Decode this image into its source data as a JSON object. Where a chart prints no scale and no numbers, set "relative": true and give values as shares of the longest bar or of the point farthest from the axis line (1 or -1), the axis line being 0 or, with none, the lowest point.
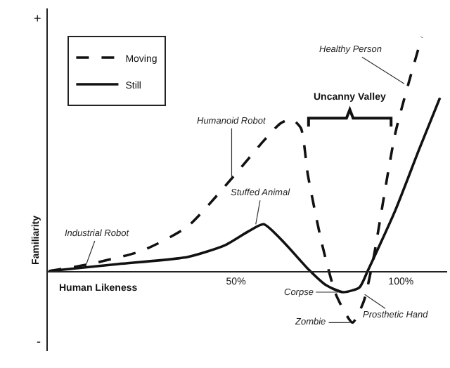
{
  "chart_data": {
    "type": "line",
    "relative": true,
    "xlabel": "Human Likeness",
    "ylabel": "Familiarity",
    "xlim": [
      -7,
      114
    ],
    "xticks": [
      {
        "value": 50,
        "label": "50%"
      },
      {
        "value": 100,
        "label": "100%"
      }
    ],
    "legend": "top left",
    "grid": false,
    "series": [
      {
        "name": "Moving",
        "color": "#111111",
        "line_style": "dashed",
        "x": [
          -6.7,
          4.6,
          21.4,
          35.3,
          49.6,
          58,
          63.4,
          66.8,
          69.7,
          71.8,
          76,
          80.3,
          85.3,
          88.7,
          91.6,
          98.3,
          106.3
        ],
        "values": [
          0,
          0.027,
          0.086,
          0.19,
          0.41,
          0.55,
          0.63,
          0.65,
          0.61,
          0.41,
          0.12,
          -0.1,
          -0.22,
          -0.13,
          0.05,
          0.59,
          1.0
        ]
      },
      {
        "name": "Still",
        "color": "#111111",
        "line_style": "solid",
        "x": [
          -6.7,
          14.3,
          35.3,
          46.6,
          53.8,
          58.4,
          64.7,
          71.8,
          77.3,
          82.4,
          87.4,
          89.9,
          98.3,
          105.5,
          111.8
        ],
        "values": [
          0,
          0.03,
          0.06,
          0.11,
          0.17,
          0.2,
          0.12,
          0.01,
          -0.06,
          -0.09,
          -0.07,
          0,
          0.26,
          0.52,
          0.74
        ]
      }
    ],
    "annotations": [
      "+",
      "-",
      {
        "text": "Industrial Robot",
        "x": 4.6,
        "y": 0.027
      },
      {
        "text": "Humanoid Robot",
        "x": 48.7,
        "y": 0.4
      },
      {
        "text": "Stuffed Animal",
        "x": 56,
        "y": 0.2
      },
      {
        "text": "Healthy Person",
        "x": 101,
        "y": 0.8
      },
      {
        "text": "Corpse",
        "x": 81,
        "y": -0.09
      },
      {
        "text": "Zombie",
        "x": 84.5,
        "y": -0.22
      },
      {
        "text": "Prosthetic Hand",
        "x": 89,
        "y": -0.1
      },
      "Uncanny Valley"
    ]
  }
}
